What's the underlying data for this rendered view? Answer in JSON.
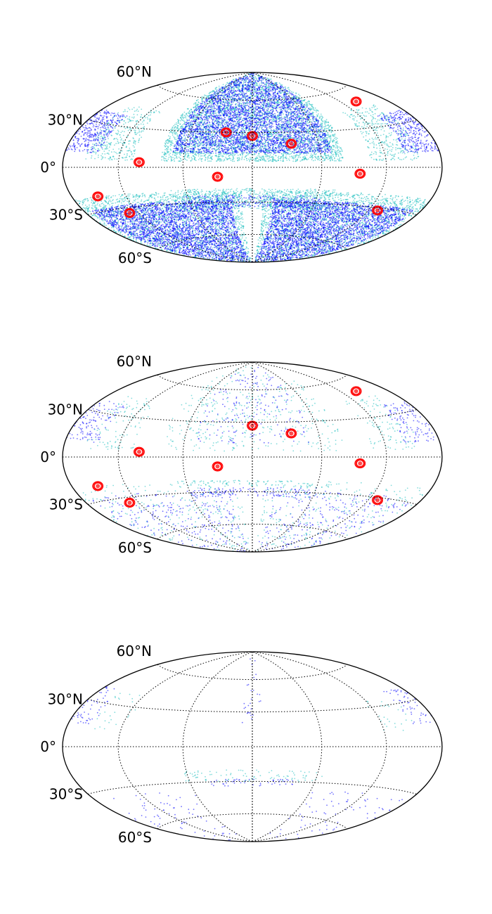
{
  "projection": "hammer",
  "graticule": {
    "parallels_deg": [
      -60,
      -30,
      0,
      30,
      60
    ],
    "meridians_deg": [
      -120,
      -60,
      0,
      60,
      120
    ],
    "labels": [
      "60°N",
      "30°N",
      "0°",
      "30°S",
      "60°S"
    ]
  },
  "colors": {
    "outline": "#000000",
    "grid": "#000000",
    "blue": "#0000ff",
    "cyan": "#1fbfbf",
    "red": "#ff0000"
  },
  "maps": [
    {
      "name": "panel-1",
      "bands": [
        {
          "color": "cyan",
          "lon": [
            -80,
            80
          ],
          "lat": [
            5,
            90
          ],
          "density": 0.85
        },
        {
          "color": "blue",
          "lon": [
            -70,
            70
          ],
          "lat": [
            12,
            90
          ],
          "density": 0.95
        },
        {
          "color": "cyan",
          "lon": [
            -75,
            75
          ],
          "lat": [
            -36,
            -18
          ],
          "density": 0.6
        },
        {
          "color": "blue",
          "lon": [
            -65,
            65
          ],
          "lat": [
            -34,
            -24
          ],
          "density": 0.7
        },
        {
          "color": "cyan",
          "lon": [
            -155,
            -105
          ],
          "lat": [
            5,
            45
          ],
          "density": 0.5
        },
        {
          "color": "blue",
          "lon": [
            -180,
            -140
          ],
          "lat": [
            10,
            38
          ],
          "density": 0.9
        },
        {
          "color": "cyan",
          "lon": [
            105,
            155
          ],
          "lat": [
            5,
            45
          ],
          "density": 0.5
        },
        {
          "color": "blue",
          "lon": [
            140,
            180
          ],
          "lat": [
            10,
            38
          ],
          "density": 0.9
        },
        {
          "color": "cyan",
          "lon": [
            -180,
            -10
          ],
          "lat": [
            -90,
            -20
          ],
          "density": 0.55
        },
        {
          "color": "blue",
          "lon": [
            -170,
            -20
          ],
          "lat": [
            -90,
            -28
          ],
          "density": 0.9
        },
        {
          "color": "cyan",
          "lon": [
            10,
            180
          ],
          "lat": [
            -90,
            -20
          ],
          "density": 0.55
        },
        {
          "color": "blue",
          "lon": [
            20,
            170
          ],
          "lat": [
            -90,
            -28
          ],
          "density": 0.9
        }
      ],
      "sources": [
        {
          "lon": 0,
          "lat": 27
        },
        {
          "lon": 35,
          "lat": 20
        },
        {
          "lon": -25,
          "lat": 30
        },
        {
          "lon": -100,
          "lat": 4
        },
        {
          "lon": -30,
          "lat": -8
        },
        {
          "lon": 95,
          "lat": -5
        },
        {
          "lon": -150,
          "lat": -20
        },
        {
          "lon": -130,
          "lat": -34
        },
        {
          "lon": 130,
          "lat": -32
        },
        {
          "lon": 140,
          "lat": 50
        }
      ]
    },
    {
      "name": "panel-2",
      "bands": [
        {
          "color": "cyan",
          "lon": [
            -80,
            80
          ],
          "lat": [
            5,
            90
          ],
          "density": 0.08
        },
        {
          "color": "blue",
          "lon": [
            -50,
            50
          ],
          "lat": [
            12,
            90
          ],
          "density": 0.07
        },
        {
          "color": "blue",
          "lon": [
            -60,
            60
          ],
          "lat": [
            -34,
            -26
          ],
          "density": 0.35
        },
        {
          "color": "cyan",
          "lon": [
            -75,
            75
          ],
          "lat": [
            -25,
            -20
          ],
          "density": 0.35
        },
        {
          "color": "blue",
          "lon": [
            -180,
            -140
          ],
          "lat": [
            10,
            38
          ],
          "density": 0.3
        },
        {
          "color": "blue",
          "lon": [
            140,
            180
          ],
          "lat": [
            10,
            38
          ],
          "density": 0.3
        },
        {
          "color": "cyan",
          "lon": [
            -155,
            -105
          ],
          "lat": [
            5,
            45
          ],
          "density": 0.15
        },
        {
          "color": "cyan",
          "lon": [
            105,
            155
          ],
          "lat": [
            5,
            45
          ],
          "density": 0.15
        },
        {
          "color": "blue",
          "lon": [
            -170,
            -20
          ],
          "lat": [
            -90,
            -28
          ],
          "density": 0.08
        },
        {
          "color": "blue",
          "lon": [
            20,
            170
          ],
          "lat": [
            -90,
            -28
          ],
          "density": 0.08
        },
        {
          "color": "cyan",
          "lon": [
            -180,
            -10
          ],
          "lat": [
            -90,
            -20
          ],
          "density": 0.06
        },
        {
          "color": "cyan",
          "lon": [
            10,
            180
          ],
          "lat": [
            -90,
            -20
          ],
          "density": 0.06
        }
      ],
      "sources": [
        {
          "lon": 0,
          "lat": 27
        },
        {
          "lon": 35,
          "lat": 20
        },
        {
          "lon": -100,
          "lat": 4
        },
        {
          "lon": -30,
          "lat": -8
        },
        {
          "lon": 95,
          "lat": -5
        },
        {
          "lon": -150,
          "lat": -20
        },
        {
          "lon": -130,
          "lat": -34
        },
        {
          "lon": 130,
          "lat": -32
        },
        {
          "lon": 140,
          "lat": 50
        }
      ]
    },
    {
      "name": "panel-3",
      "bands": [
        {
          "color": "blue",
          "lon": [
            -40,
            40
          ],
          "lat": [
            -34,
            -28
          ],
          "density": 0.3
        },
        {
          "color": "cyan",
          "lon": [
            -65,
            65
          ],
          "lat": [
            -30,
            -20
          ],
          "density": 0.2
        },
        {
          "color": "blue",
          "lon": [
            -10,
            10
          ],
          "lat": [
            20,
            90
          ],
          "density": 0.06
        },
        {
          "color": "blue",
          "lon": [
            -180,
            -150
          ],
          "lat": [
            15,
            40
          ],
          "density": 0.2
        },
        {
          "color": "blue",
          "lon": [
            150,
            180
          ],
          "lat": [
            15,
            40
          ],
          "density": 0.2
        },
        {
          "color": "cyan",
          "lon": [
            -155,
            -115
          ],
          "lat": [
            10,
            40
          ],
          "density": 0.06
        },
        {
          "color": "cyan",
          "lon": [
            115,
            155
          ],
          "lat": [
            10,
            40
          ],
          "density": 0.06
        },
        {
          "color": "blue",
          "lon": [
            -180,
            -60
          ],
          "lat": [
            -90,
            -35
          ],
          "density": 0.03
        },
        {
          "color": "blue",
          "lon": [
            60,
            180
          ],
          "lat": [
            -90,
            -35
          ],
          "density": 0.03
        }
      ],
      "sources": []
    }
  ]
}
